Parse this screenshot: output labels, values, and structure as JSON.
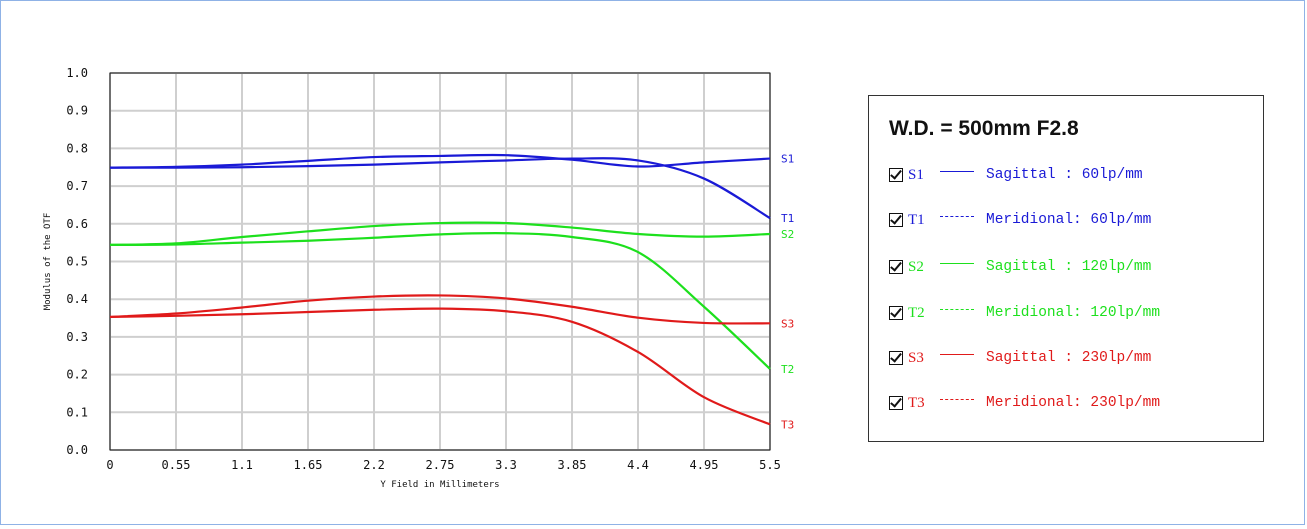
{
  "chart_data": {
    "type": "line",
    "xlabel": "Y Field in Millimeters",
    "ylabel": "Modulus of the OTF",
    "xlim": [
      0,
      5.5
    ],
    "ylim": [
      0.0,
      1.0
    ],
    "x_ticks": [
      "0",
      "0.55",
      "1.1",
      "1.65",
      "2.2",
      "2.75",
      "3.3",
      "3.85",
      "4.4",
      "4.95",
      "5.5"
    ],
    "y_ticks": [
      "0.0",
      "0.1",
      "0.2",
      "0.3",
      "0.4",
      "0.5",
      "0.6",
      "0.7",
      "0.8",
      "0.9",
      "1.0"
    ],
    "grid": true,
    "x": [
      0,
      0.55,
      1.1,
      1.65,
      2.2,
      2.75,
      3.3,
      3.85,
      4.4,
      4.95,
      5.5
    ],
    "series": [
      {
        "name": "S1",
        "color": "#1a1ad6",
        "values": [
          0.749,
          0.751,
          0.757,
          0.767,
          0.777,
          0.78,
          0.782,
          0.77,
          0.752,
          0.763,
          0.773
        ]
      },
      {
        "name": "T1",
        "color": "#1a1ad6",
        "values": [
          0.749,
          0.749,
          0.75,
          0.753,
          0.757,
          0.763,
          0.768,
          0.773,
          0.768,
          0.72,
          0.615
        ]
      },
      {
        "name": "S2",
        "color": "#1de01d",
        "values": [
          0.544,
          0.548,
          0.565,
          0.58,
          0.594,
          0.602,
          0.602,
          0.59,
          0.573,
          0.566,
          0.573
        ]
      },
      {
        "name": "T2",
        "color": "#1de01d",
        "values": [
          0.544,
          0.545,
          0.55,
          0.555,
          0.563,
          0.572,
          0.575,
          0.565,
          0.525,
          0.38,
          0.215
        ]
      },
      {
        "name": "S3",
        "color": "#e01a1a",
        "values": [
          0.353,
          0.362,
          0.378,
          0.396,
          0.407,
          0.41,
          0.402,
          0.38,
          0.351,
          0.337,
          0.336
        ]
      },
      {
        "name": "T3",
        "color": "#e01a1a",
        "values": [
          0.353,
          0.356,
          0.36,
          0.366,
          0.372,
          0.375,
          0.368,
          0.34,
          0.26,
          0.14,
          0.068
        ]
      }
    ]
  },
  "legend": {
    "title": "W.D. = 500mm F2.8",
    "items": [
      {
        "name": "S1",
        "desc": "Sagittal  : 60lp/mm",
        "color": "#1a1ad6",
        "style": "solid"
      },
      {
        "name": "T1",
        "desc": "Meridional: 60lp/mm",
        "color": "#1a1ad6",
        "style": "dashed"
      },
      {
        "name": "S2",
        "desc": "Sagittal  : 120lp/mm",
        "color": "#1de01d",
        "style": "solid"
      },
      {
        "name": "T2",
        "desc": "Meridional: 120lp/mm",
        "color": "#1de01d",
        "style": "dashed"
      },
      {
        "name": "S3",
        "desc": "Sagittal  : 230lp/mm",
        "color": "#e01a1a",
        "style": "solid"
      },
      {
        "name": "T3",
        "desc": "Meridional: 230lp/mm",
        "color": "#e01a1a",
        "style": "dashed"
      }
    ]
  }
}
